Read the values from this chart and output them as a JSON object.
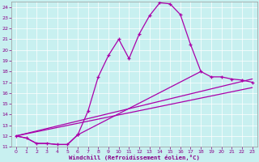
{
  "bg_color": "#c8f0f0",
  "line_color": "#aa00aa",
  "xlabel": "Windchill (Refroidissement éolien,°C)",
  "xlim": [
    -0.5,
    23.5
  ],
  "ylim": [
    11,
    24.5
  ],
  "yticks": [
    11,
    12,
    13,
    14,
    15,
    16,
    17,
    18,
    19,
    20,
    21,
    22,
    23,
    24
  ],
  "xticks": [
    0,
    1,
    2,
    3,
    4,
    5,
    6,
    7,
    8,
    9,
    10,
    11,
    12,
    13,
    14,
    15,
    16,
    17,
    18,
    19,
    20,
    21,
    22,
    23
  ],
  "line1_x": [
    0,
    1,
    2,
    3,
    4,
    5,
    6,
    7,
    8,
    9,
    10,
    11,
    12,
    13,
    14,
    15,
    16,
    17
  ],
  "line1_y": [
    12.0,
    11.8,
    11.3,
    11.3,
    11.2,
    11.2,
    12.1,
    14.3,
    17.5,
    19.5,
    21.0,
    19.2,
    21.5,
    23.2,
    24.4,
    24.3,
    23.3,
    20.5
  ],
  "line2_x": [
    0,
    1,
    2,
    3,
    4,
    5,
    6,
    18,
    19,
    20,
    21,
    22,
    23
  ],
  "line2_y": [
    12.0,
    11.8,
    11.3,
    11.3,
    11.2,
    11.2,
    12.1,
    18.0,
    17.5,
    17.5,
    17.3,
    17.2,
    17.0
  ],
  "line3_x": [
    0,
    23
  ],
  "line3_y": [
    12.0,
    17.3
  ],
  "line4_x": [
    0,
    23
  ],
  "line4_y": [
    12.0,
    16.5
  ]
}
